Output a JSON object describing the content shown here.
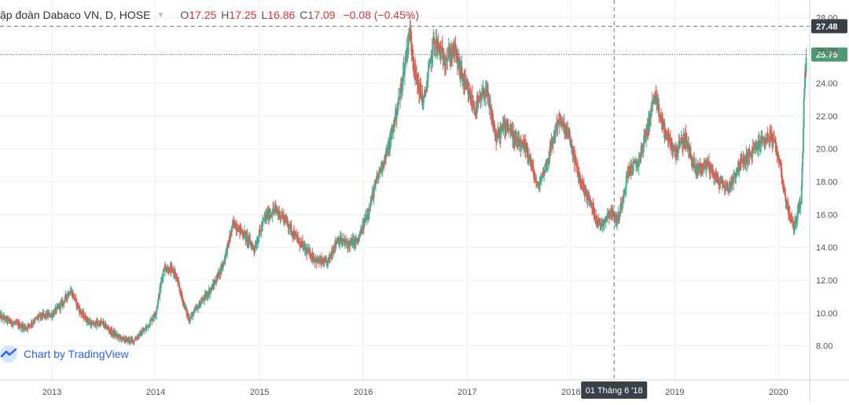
{
  "header": {
    "symbol": "ập đoàn Dabaco VN, D, HOSE",
    "open_label": "O",
    "open": "17.25",
    "high_label": "H",
    "high": "17.25",
    "low_label": "L",
    "low": "16.86",
    "close_label": "C",
    "close": "17.09",
    "change": "−0.08 (−0.45%)"
  },
  "watermark": {
    "text": "Chart by TradingView"
  },
  "colors": {
    "up": "#4caf8f",
    "down": "#e0584f",
    "grid": "#eef0f3",
    "axis_text": "#555555",
    "crosshair": "#6b7a8a",
    "price_badge": "#4f9a72",
    "crosshair_badge": "#3a4048"
  },
  "chart_data": {
    "type": "candlestick",
    "title": "",
    "ylim": [
      6.5,
      28.5
    ],
    "y_ticks": [
      8,
      10,
      12,
      14,
      16,
      18,
      20,
      22,
      24,
      26,
      28
    ],
    "y_tick_labels": [
      "8.00",
      "10.00",
      "12.00",
      "14.00",
      "16.00",
      "18.00",
      "20.00",
      "22.00",
      "24.00",
      "26.00",
      "28.00"
    ],
    "x_ticks": [
      "2013",
      "2014",
      "2015",
      "2016",
      "2017",
      "2018",
      "2019",
      "2020"
    ],
    "xlim": [
      2012.5,
      2020.3
    ],
    "grid": true,
    "last_price_label": "25.75",
    "crosshair": {
      "price_label": "27.48",
      "date_label": "01 Tháng 6 '18",
      "date_value": 2018.416,
      "price_value": 27.48
    },
    "price_path": [
      [
        2012.5,
        9.8
      ],
      [
        2012.62,
        9.4
      ],
      [
        2012.75,
        9.1
      ],
      [
        2012.88,
        9.8
      ],
      [
        2013.0,
        9.9
      ],
      [
        2013.1,
        10.6
      ],
      [
        2013.18,
        11.4
      ],
      [
        2013.28,
        10.0
      ],
      [
        2013.38,
        9.3
      ],
      [
        2013.48,
        9.4
      ],
      [
        2013.58,
        8.8
      ],
      [
        2013.68,
        8.4
      ],
      [
        2013.78,
        8.3
      ],
      [
        2013.9,
        9.0
      ],
      [
        2014.0,
        10.0
      ],
      [
        2014.08,
        12.8
      ],
      [
        2014.18,
        12.5
      ],
      [
        2014.25,
        11.0
      ],
      [
        2014.32,
        9.6
      ],
      [
        2014.42,
        10.5
      ],
      [
        2014.55,
        11.6
      ],
      [
        2014.65,
        13.0
      ],
      [
        2014.75,
        15.5
      ],
      [
        2014.85,
        14.8
      ],
      [
        2014.95,
        13.9
      ],
      [
        2015.05,
        15.8
      ],
      [
        2015.15,
        16.3
      ],
      [
        2015.25,
        15.7
      ],
      [
        2015.35,
        14.6
      ],
      [
        2015.45,
        13.8
      ],
      [
        2015.55,
        13.2
      ],
      [
        2015.65,
        13.0
      ],
      [
        2015.75,
        14.5
      ],
      [
        2015.85,
        14.2
      ],
      [
        2015.95,
        14.4
      ],
      [
        2016.05,
        16.3
      ],
      [
        2016.15,
        18.5
      ],
      [
        2016.25,
        20.2
      ],
      [
        2016.35,
        23.2
      ],
      [
        2016.45,
        27.2
      ],
      [
        2016.5,
        24.5
      ],
      [
        2016.58,
        22.8
      ],
      [
        2016.68,
        26.6
      ],
      [
        2016.78,
        25.5
      ],
      [
        2016.88,
        26.0
      ],
      [
        2016.98,
        23.8
      ],
      [
        2017.08,
        22.4
      ],
      [
        2017.18,
        23.6
      ],
      [
        2017.28,
        20.6
      ],
      [
        2017.38,
        21.6
      ],
      [
        2017.48,
        20.3
      ],
      [
        2017.58,
        19.9
      ],
      [
        2017.68,
        17.6
      ],
      [
        2017.78,
        19.4
      ],
      [
        2017.88,
        21.8
      ],
      [
        2017.98,
        20.8
      ],
      [
        2018.08,
        18.2
      ],
      [
        2018.18,
        16.8
      ],
      [
        2018.28,
        15.3
      ],
      [
        2018.38,
        16.2
      ],
      [
        2018.45,
        15.6
      ],
      [
        2018.55,
        18.6
      ],
      [
        2018.65,
        19.2
      ],
      [
        2018.75,
        21.6
      ],
      [
        2018.8,
        23.2
      ],
      [
        2018.9,
        21.1
      ],
      [
        2019.0,
        19.8
      ],
      [
        2019.1,
        20.6
      ],
      [
        2019.2,
        18.7
      ],
      [
        2019.32,
        19.1
      ],
      [
        2019.42,
        18.0
      ],
      [
        2019.52,
        17.6
      ],
      [
        2019.62,
        19.0
      ],
      [
        2019.72,
        19.6
      ],
      [
        2019.82,
        20.4
      ],
      [
        2019.92,
        20.8
      ],
      [
        2020.0,
        19.6
      ],
      [
        2020.08,
        16.5
      ],
      [
        2020.15,
        15.2
      ],
      [
        2020.22,
        17.0
      ],
      [
        2020.25,
        24.2
      ],
      [
        2020.27,
        25.75
      ]
    ]
  }
}
